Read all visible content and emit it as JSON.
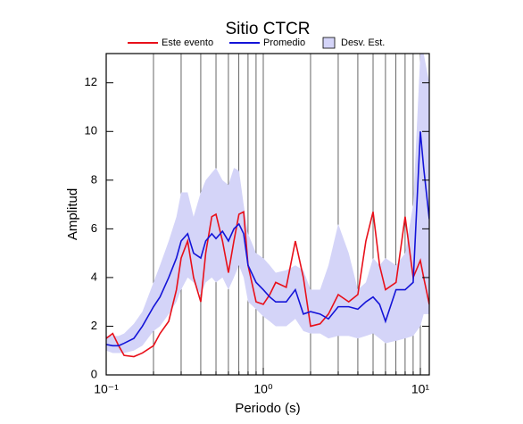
{
  "chart_data": {
    "type": "line",
    "title": "Sitio CTCR",
    "x_label": "Periodo (s)",
    "y_label": "Amplitud",
    "log_x": true,
    "grid_x": true,
    "x": [
      0.1,
      0.11,
      0.12,
      0.13,
      0.15,
      0.17,
      0.2,
      0.22,
      0.25,
      0.28,
      0.3,
      0.33,
      0.36,
      0.4,
      0.43,
      0.47,
      0.5,
      0.55,
      0.6,
      0.65,
      0.7,
      0.75,
      0.8,
      0.9,
      1.0,
      1.1,
      1.2,
      1.4,
      1.6,
      1.8,
      2.0,
      2.3,
      2.6,
      3.0,
      3.5,
      4.0,
      4.5,
      5.0,
      5.5,
      6.0,
      7.0,
      8.0,
      9.0,
      10,
      10.5,
      11.4
    ],
    "series": [
      {
        "name": "Este evento",
        "color": "#e8101a",
        "values": [
          1.5,
          1.7,
          1.2,
          0.8,
          0.75,
          0.9,
          1.2,
          1.7,
          2.2,
          3.5,
          4.8,
          5.5,
          4.0,
          3.0,
          5.0,
          6.5,
          6.6,
          5.5,
          4.2,
          5.5,
          6.6,
          6.7,
          4.5,
          3.0,
          2.9,
          3.3,
          3.8,
          3.6,
          5.5,
          4.0,
          2.0,
          2.1,
          2.5,
          3.3,
          3.0,
          3.3,
          5.5,
          6.7,
          4.5,
          3.5,
          3.8,
          6.5,
          4.0,
          4.7,
          4.0,
          2.9
        ]
      },
      {
        "name": "Promedio",
        "color": "#1414d8",
        "values": [
          1.25,
          1.2,
          1.2,
          1.3,
          1.5,
          2.0,
          2.8,
          3.2,
          4.0,
          4.8,
          5.5,
          5.8,
          5.0,
          4.8,
          5.5,
          5.8,
          5.6,
          5.9,
          5.5,
          6.0,
          6.2,
          5.8,
          4.5,
          3.8,
          3.5,
          3.2,
          3.0,
          3.0,
          3.5,
          2.5,
          2.6,
          2.5,
          2.3,
          2.8,
          2.8,
          2.7,
          3.0,
          3.2,
          2.9,
          2.2,
          3.5,
          3.5,
          3.8,
          10.0,
          8.5,
          6.4
        ]
      },
      {
        "name": "Desv. Est.",
        "color": "#d4d4f8",
        "type": "band",
        "high": [
          1.6,
          1.6,
          1.6,
          1.7,
          2.1,
          2.6,
          3.8,
          4.5,
          5.5,
          6.5,
          7.5,
          7.5,
          6.5,
          7.5,
          8.0,
          8.3,
          8.5,
          8.0,
          7.8,
          8.5,
          8.4,
          7.0,
          5.8,
          5.0,
          4.8,
          4.5,
          4.2,
          4.3,
          4.5,
          4.3,
          3.5,
          3.5,
          4.5,
          6.2,
          5.0,
          3.5,
          3.8,
          4.8,
          4.5,
          4.8,
          4.5,
          5.0,
          7.0,
          13.2,
          13.2,
          12.0
        ],
        "low": [
          1.0,
          0.9,
          0.9,
          0.9,
          1.0,
          1.2,
          1.8,
          2.0,
          2.5,
          3.0,
          3.5,
          4.0,
          3.8,
          3.3,
          3.8,
          4.0,
          3.8,
          4.0,
          3.5,
          4.0,
          4.5,
          4.0,
          3.0,
          2.7,
          2.4,
          2.2,
          2.0,
          2.0,
          2.3,
          1.8,
          1.7,
          1.7,
          1.5,
          1.6,
          1.6,
          1.5,
          1.6,
          1.7,
          1.5,
          1.3,
          1.4,
          1.5,
          1.6,
          2.0,
          2.5,
          2.5
        ]
      }
    ],
    "xlim": [
      0.1,
      11.4
    ],
    "ylim": [
      0,
      13.2
    ],
    "xticks": [
      {
        "value": 0.1,
        "label": "10⁻¹"
      },
      {
        "value": 1,
        "label": "10⁰"
      },
      {
        "value": 10,
        "label": "10¹"
      }
    ],
    "yticks": [
      0,
      2,
      4,
      6,
      8,
      10,
      12
    ]
  }
}
